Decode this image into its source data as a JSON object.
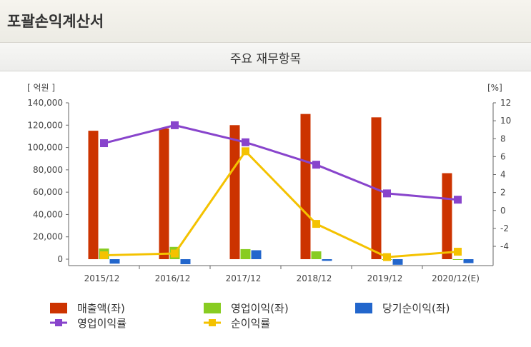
{
  "header": {
    "title": "포괄손익계산서"
  },
  "subheader": {
    "title": "주요 재무항목"
  },
  "colors": {
    "revenue": "#cc3300",
    "operating_income": "#88cc22",
    "net_income": "#2266cc",
    "operating_margin": "#8844cc",
    "net_margin": "#f4c200"
  },
  "chart_data": {
    "type": "bar",
    "categories": [
      "2015/12",
      "2016/12",
      "2017/12",
      "2018/12",
      "2019/12",
      "2020/12(E)"
    ],
    "left_axis": {
      "label": "[ 억원 ]",
      "ylim": [
        0,
        140000
      ],
      "ticks": [
        "140,000",
        "120,000",
        "100,000",
        "80,000",
        "60,000",
        "40,000",
        "20,000",
        "0"
      ]
    },
    "right_axis": {
      "label": "[%]",
      "ylim": [
        -6,
        12
      ],
      "ticks": [
        "12",
        "10",
        "8",
        "6",
        "4",
        "2",
        "0",
        "-2",
        "-4"
      ]
    },
    "grid": false,
    "legend_position": "bottom",
    "series": [
      {
        "name": "매출액(좌)",
        "type": "bar",
        "axis": "left",
        "values": [
          115000,
          117000,
          120000,
          130000,
          127000,
          77000
        ]
      },
      {
        "name": "영업이익(좌)",
        "type": "bar",
        "axis": "left",
        "values": [
          9500,
          11000,
          9000,
          7000,
          -500,
          -500
        ]
      },
      {
        "name": "당기순이익(좌)",
        "type": "bar",
        "axis": "left",
        "values": [
          -4000,
          -4500,
          8000,
          -1500,
          -5000,
          -3500
        ]
      },
      {
        "name": "영업이익률",
        "type": "line",
        "axis": "right",
        "values": [
          7.5,
          9.5,
          7.6,
          5.1,
          1.9,
          1.2
        ]
      },
      {
        "name": "순이익률",
        "type": "line",
        "axis": "right",
        "values": [
          -5.0,
          -4.8,
          6.6,
          -1.5,
          -5.2,
          -4.6
        ]
      }
    ]
  }
}
